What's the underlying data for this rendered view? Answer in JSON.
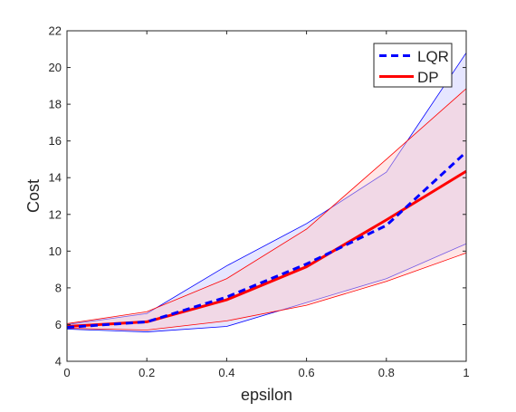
{
  "chart_data": {
    "type": "line",
    "xlabel": "epsilon",
    "ylabel": "Cost",
    "xlim": [
      0,
      1
    ],
    "ylim": [
      4,
      22
    ],
    "xticks": [
      0,
      0.2,
      0.4,
      0.6,
      0.8,
      1
    ],
    "xtick_labels": [
      "0",
      "0.2",
      "0.4",
      "0.6",
      "0.8",
      "1"
    ],
    "yticks": [
      4,
      6,
      8,
      10,
      12,
      14,
      16,
      18,
      20,
      22
    ],
    "ytick_labels": [
      "4",
      "6",
      "8",
      "10",
      "12",
      "14",
      "16",
      "18",
      "20",
      "22"
    ],
    "grid": false,
    "legend_position": "top-right",
    "x": [
      0,
      0.2,
      0.4,
      0.6,
      0.8,
      1
    ],
    "series": [
      {
        "name": "LQR",
        "style": "dashed",
        "color": "#0000ff",
        "values": [
          5.85,
          6.15,
          7.5,
          9.3,
          11.4,
          15.4
        ],
        "band_upper": [
          6.0,
          6.6,
          9.2,
          11.5,
          14.3,
          20.8
        ],
        "band_lower": [
          5.75,
          5.6,
          5.9,
          7.2,
          8.5,
          10.4
        ],
        "band_color": "#c8c8ff"
      },
      {
        "name": "DP",
        "style": "solid",
        "color": "#ff0000",
        "values": [
          5.9,
          6.15,
          7.35,
          9.15,
          11.7,
          14.35
        ],
        "band_upper": [
          6.05,
          6.7,
          8.5,
          11.2,
          15.0,
          18.85
        ],
        "band_lower": [
          5.8,
          5.7,
          6.2,
          7.05,
          8.35,
          9.9
        ],
        "band_color": "#ffc8c8"
      }
    ]
  }
}
